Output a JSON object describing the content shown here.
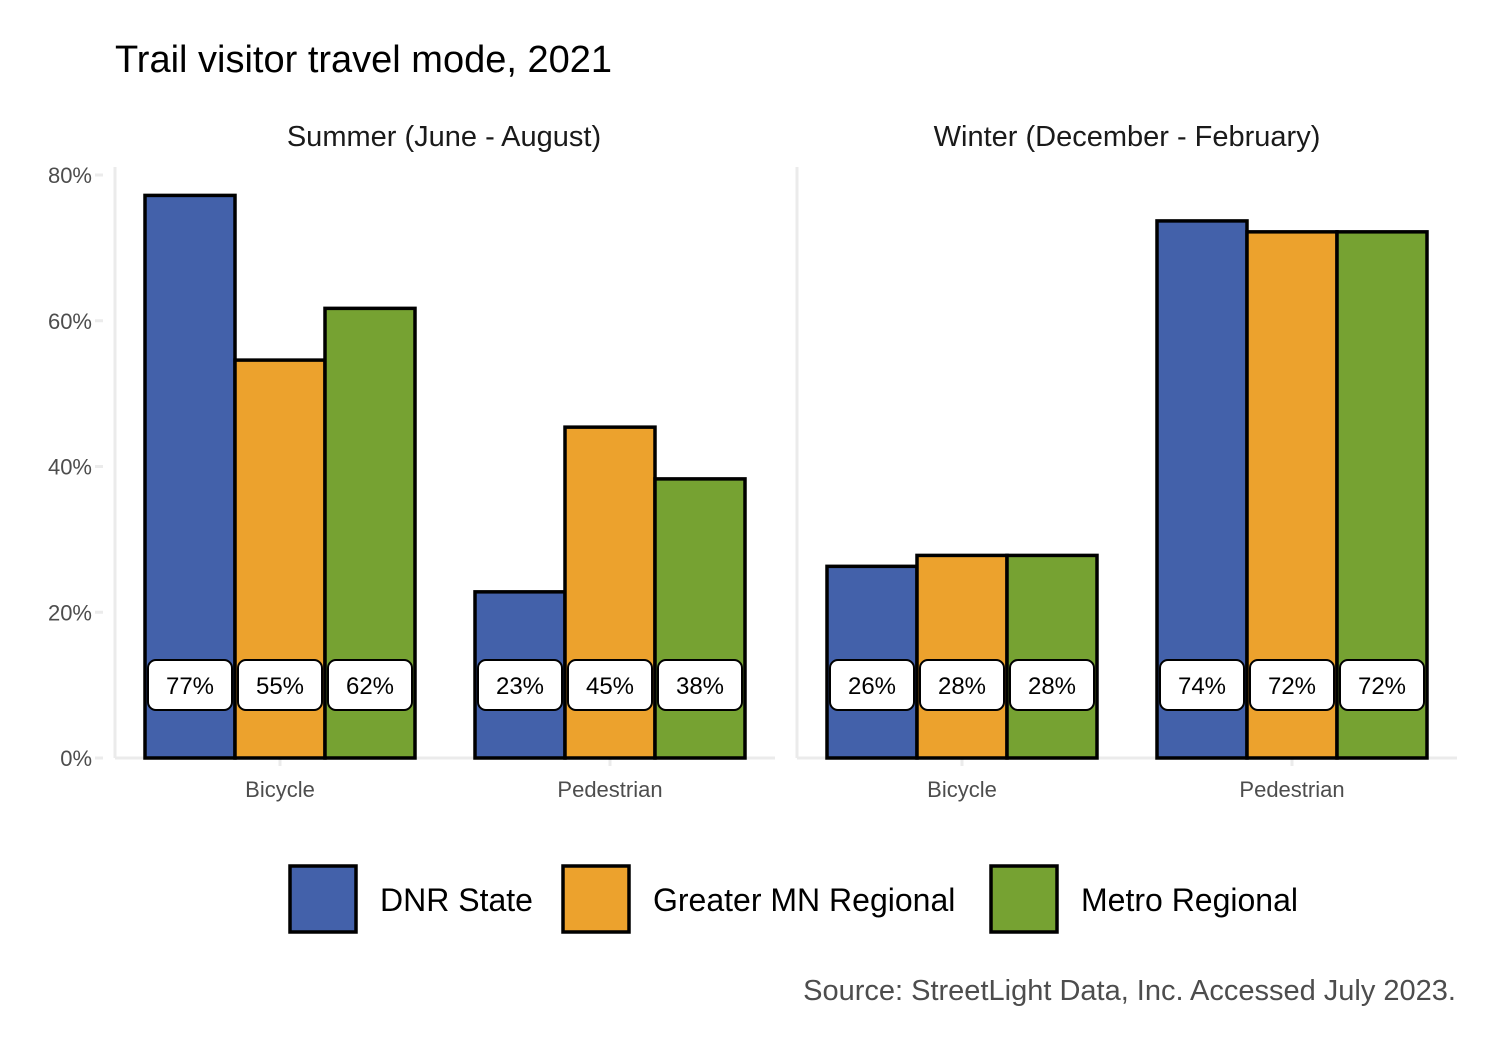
{
  "chart_data": {
    "type": "bar",
    "title": "Trail visitor travel mode, 2021",
    "caption": "Source: StreetLight Data, Inc. Accessed July 2023.",
    "ylim": [
      0,
      80
    ],
    "y_ticks": [
      "0%",
      "20%",
      "40%",
      "60%",
      "80%"
    ],
    "y_tick_values": [
      0,
      20,
      40,
      60,
      80
    ],
    "categories": [
      "Bicycle",
      "Pedestrian"
    ],
    "series_names": [
      "DNR State",
      "Greater MN Regional",
      "Metro Regional"
    ],
    "colors": [
      "#4361AA",
      "#ECA22D",
      "#76A232"
    ],
    "legend_position": "bottom",
    "grid": false,
    "panels": [
      {
        "title": "Summer (June - August)",
        "series": [
          {
            "name": "DNR State",
            "values": [
              77.2,
              22.8
            ],
            "labels": [
              "77%",
              "23%"
            ]
          },
          {
            "name": "Greater MN Regional",
            "values": [
              54.6,
              45.4
            ],
            "labels": [
              "55%",
              "45%"
            ]
          },
          {
            "name": "Metro Regional",
            "values": [
              61.7,
              38.3
            ],
            "labels": [
              "62%",
              "38%"
            ]
          }
        ]
      },
      {
        "title": "Winter (December - February)",
        "series": [
          {
            "name": "DNR State",
            "values": [
              26.3,
              73.7
            ],
            "labels": [
              "26%",
              "74%"
            ]
          },
          {
            "name": "Greater MN Regional",
            "values": [
              27.8,
              72.2
            ],
            "labels": [
              "28%",
              "72%"
            ]
          },
          {
            "name": "Metro Regional",
            "values": [
              27.8,
              72.2
            ],
            "labels": [
              "28%",
              "72%"
            ]
          }
        ]
      }
    ]
  }
}
